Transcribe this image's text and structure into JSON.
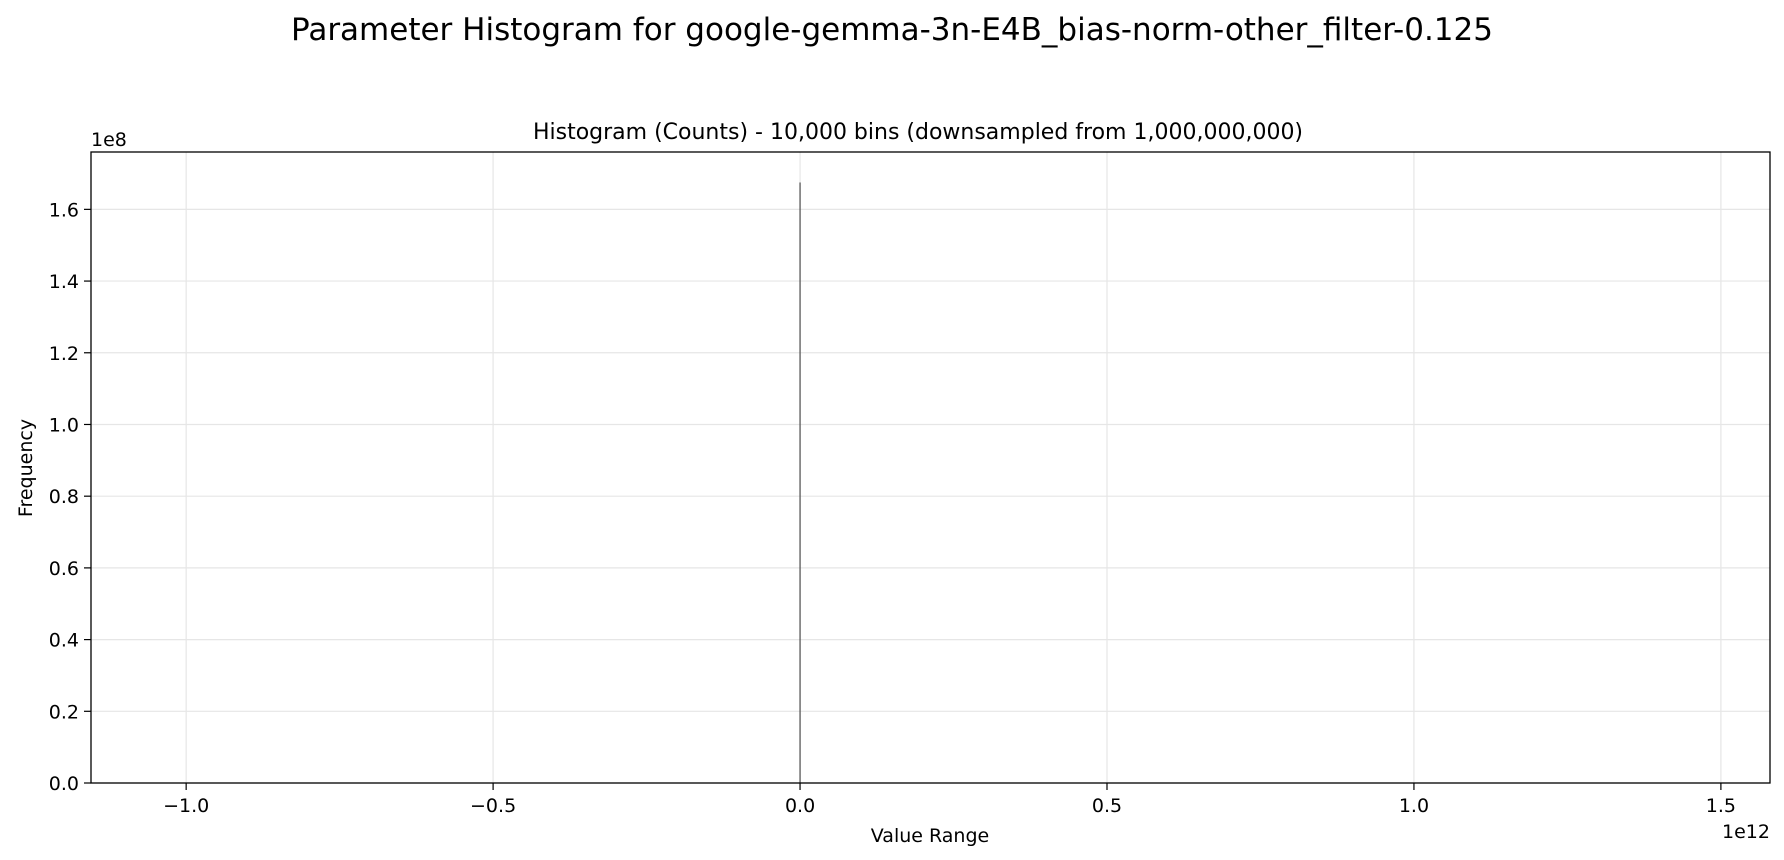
{
  "figure": {
    "suptitle": "Parameter Histogram for google-gemma-3n-E4B_bias-norm-other_filter-0.125"
  },
  "chart_data": {
    "type": "bar",
    "title": "Histogram (Counts) - 10,000 bins (downsampled from 1,000,000,000)",
    "xlabel": "Value Range",
    "ylabel": "Frequency",
    "x_offset_text": "1e12",
    "y_offset_text": "1e8",
    "xlim": [
      -1.155,
      1.58
    ],
    "ylim": [
      0,
      1.76
    ],
    "x_ticks": [
      {
        "value": -1.0,
        "label": "−1.0"
      },
      {
        "value": -0.5,
        "label": "−0.5"
      },
      {
        "value": 0.0,
        "label": "0.0"
      },
      {
        "value": 0.5,
        "label": "0.5"
      },
      {
        "value": 1.0,
        "label": "1.0"
      },
      {
        "value": 1.5,
        "label": "1.5"
      }
    ],
    "y_ticks": [
      {
        "value": 0.0,
        "label": "0.0"
      },
      {
        "value": 0.2,
        "label": "0.2"
      },
      {
        "value": 0.4,
        "label": "0.4"
      },
      {
        "value": 0.6,
        "label": "0.6"
      },
      {
        "value": 0.8,
        "label": "0.8"
      },
      {
        "value": 1.0,
        "label": "1.0"
      },
      {
        "value": 1.2,
        "label": "1.2"
      },
      {
        "value": 1.4,
        "label": "1.4"
      },
      {
        "value": 1.6,
        "label": "1.6"
      }
    ],
    "bins": [
      {
        "x": 0.0,
        "count": 1.675
      }
    ],
    "grid": true,
    "bar_color": "#4d4d4d",
    "grid_color": "#e6e6e6"
  }
}
